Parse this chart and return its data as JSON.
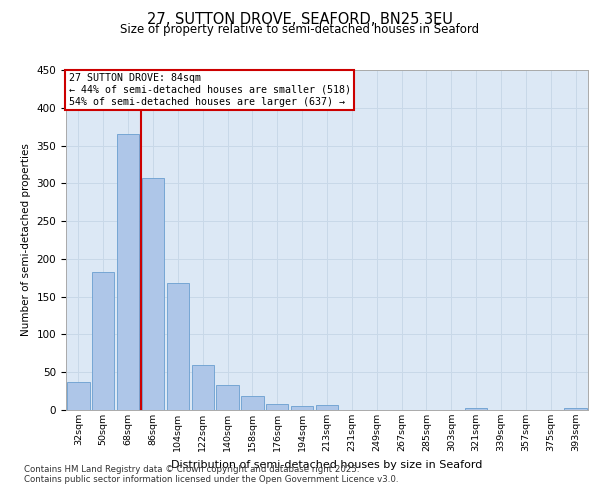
{
  "title_line1": "27, SUTTON DROVE, SEAFORD, BN25 3EU",
  "title_line2": "Size of property relative to semi-detached houses in Seaford",
  "xlabel": "Distribution of semi-detached houses by size in Seaford",
  "ylabel": "Number of semi-detached properties",
  "categories": [
    "32sqm",
    "50sqm",
    "68sqm",
    "86sqm",
    "104sqm",
    "122sqm",
    "140sqm",
    "158sqm",
    "176sqm",
    "194sqm",
    "213sqm",
    "231sqm",
    "249sqm",
    "267sqm",
    "285sqm",
    "303sqm",
    "321sqm",
    "339sqm",
    "357sqm",
    "375sqm",
    "393sqm"
  ],
  "values": [
    37,
    183,
    365,
    307,
    168,
    60,
    33,
    18,
    8,
    5,
    7,
    0,
    0,
    0,
    0,
    0,
    3,
    0,
    0,
    0,
    2
  ],
  "bar_color": "#aec6e8",
  "bar_edge_color": "#6a9fd0",
  "property_line_color": "#cc0000",
  "property_sqm": 84,
  "pct_smaller": 44,
  "count_smaller": 518,
  "pct_larger": 54,
  "count_larger": 637,
  "annotation_box_color": "#cc0000",
  "ylim": [
    0,
    450
  ],
  "yticks": [
    0,
    50,
    100,
    150,
    200,
    250,
    300,
    350,
    400,
    450
  ],
  "grid_color": "#c8d8e8",
  "bg_color": "#dce8f5",
  "footnote1": "Contains HM Land Registry data © Crown copyright and database right 2025.",
  "footnote2": "Contains public sector information licensed under the Open Government Licence v3.0."
}
